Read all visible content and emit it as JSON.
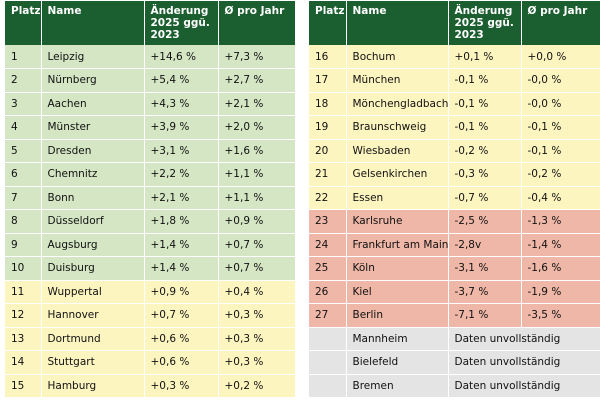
{
  "headers": {
    "rank": "Platz",
    "name": "Name",
    "change": [
      "Änderung",
      "2025 ggü.",
      "2023"
    ],
    "per_year": "Ø pro Jahr"
  },
  "left_rows": [
    {
      "rank": "1",
      "name": "Leipzig",
      "change": "+14,6 %",
      "per_year": "+7,3 %"
    },
    {
      "rank": "2",
      "name": "Nürnberg",
      "change": "+5,4 %",
      "per_year": "+2,7 %"
    },
    {
      "rank": "3",
      "name": "Aachen",
      "change": "+4,3 %",
      "per_year": "+2,1 %"
    },
    {
      "rank": "4",
      "name": "Münster",
      "change": "+3,9 %",
      "per_year": "+2,0 %"
    },
    {
      "rank": "5",
      "name": "Dresden",
      "change": "+3,1 %",
      "per_year": "+1,6 %"
    },
    {
      "rank": "6",
      "name": "Chemnitz",
      "change": "+2,2 %",
      "per_year": "+1,1 %"
    },
    {
      "rank": "7",
      "name": "Bonn",
      "change": "+2,1 %",
      "per_year": "+1,1 %"
    },
    {
      "rank": "8",
      "name": "Düsseldorf",
      "change": "+1,8 %",
      "per_year": "+0,9 %"
    },
    {
      "rank": "9",
      "name": "Augsburg",
      "change": "+1,4 %",
      "per_year": "+0,7 %"
    },
    {
      "rank": "10",
      "name": "Duisburg",
      "change": "+1,4 %",
      "per_year": "+0,7 %"
    },
    {
      "rank": "11",
      "name": "Wuppertal",
      "change": "+0,9 %",
      "per_year": "+0,4 %"
    },
    {
      "rank": "12",
      "name": "Hannover",
      "change": "+0,7 %",
      "per_year": "+0,3 %"
    },
    {
      "rank": "13",
      "name": "Dortmund",
      "change": "+0,6 %",
      "per_year": "+0,3 %"
    },
    {
      "rank": "14",
      "name": "Stuttgart",
      "change": "+0,6 %",
      "per_year": "+0,3 %"
    },
    {
      "rank": "15",
      "name": "Hamburg",
      "change": "+0,3 %",
      "per_year": "+0,2 %"
    }
  ],
  "right_rows": [
    {
      "rank": "16",
      "name": "Bochum",
      "change": "+0,1 %",
      "per_year": "+0,0 %"
    },
    {
      "rank": "17",
      "name": "München",
      "change": "-0,1 %",
      "per_year": "-0,0 %"
    },
    {
      "rank": "18",
      "name": "Mönchengladbach",
      "change": "-0,1 %",
      "per_year": "-0,0 %"
    },
    {
      "rank": "19",
      "name": "Braunschweig",
      "change": "-0,1 %",
      "per_year": "-0,1 %"
    },
    {
      "rank": "20",
      "name": "Wiesbaden",
      "change": "-0,2 %",
      "per_year": "-0,1 %"
    },
    {
      "rank": "21",
      "name": "Gelsenkirchen",
      "change": "-0,3 %",
      "per_year": "-0,2 %"
    },
    {
      "rank": "22",
      "name": "Essen",
      "change": "-0,7 %",
      "per_year": "-0,4 %"
    },
    {
      "rank": "23",
      "name": "Karlsruhe",
      "change": "-2,5 %",
      "per_year": "-1,3 %"
    },
    {
      "rank": "24",
      "name": "Frankfurt am Main",
      "change": "-2,8v",
      "per_year": "-1,4 %"
    },
    {
      "rank": "25",
      "name": "Köln",
      "change": "-3,1 %",
      "per_year": "-1,6 %"
    },
    {
      "rank": "26",
      "name": "Kiel",
      "change": "-3,7 %",
      "per_year": "-1,9 %"
    },
    {
      "rank": "27",
      "name": "Berlin",
      "change": "-7,1 %",
      "per_year": "-3,5 %"
    }
  ],
  "incomplete_rows": [
    {
      "name": "Mannheim",
      "note": "Daten unvollständig"
    },
    {
      "name": "Bielefeld",
      "note": "Daten unvollständig"
    },
    {
      "name": "Bremen",
      "note": "Daten unvollständig"
    }
  ],
  "colors": {
    "header": "#1b5e2f",
    "green": "#d5e6c4",
    "yellow": "#fdf5c0",
    "red": "#efb7a7",
    "gray": "#e4e4e4"
  }
}
